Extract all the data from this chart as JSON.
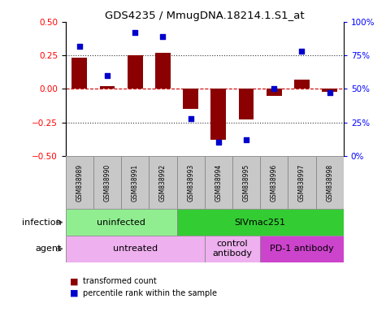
{
  "title": "GDS4235 / MmugDNA.18214.1.S1_at",
  "samples": [
    "GSM838989",
    "GSM838990",
    "GSM838991",
    "GSM838992",
    "GSM838993",
    "GSM838994",
    "GSM838995",
    "GSM838996",
    "GSM838997",
    "GSM838998"
  ],
  "transformed_count": [
    0.23,
    0.02,
    0.25,
    0.27,
    -0.15,
    -0.38,
    -0.23,
    -0.05,
    0.07,
    -0.02
  ],
  "percentile_rank": [
    82,
    60,
    92,
    89,
    28,
    10,
    12,
    50,
    78,
    47
  ],
  "ylim_left": [
    -0.5,
    0.5
  ],
  "ylim_right": [
    0,
    100
  ],
  "yticks_left": [
    -0.5,
    -0.25,
    0,
    0.25,
    0.5
  ],
  "yticks_right": [
    0,
    25,
    50,
    75,
    100
  ],
  "bar_color": "#8B0000",
  "scatter_color": "#0000CD",
  "hline_color": "#CC0000",
  "dotted_color": "#333333",
  "infection_groups": [
    {
      "label": "uninfected",
      "start": 0,
      "end": 4,
      "color": "#90EE90"
    },
    {
      "label": "SIVmac251",
      "start": 4,
      "end": 10,
      "color": "#33CC33"
    }
  ],
  "agent_groups": [
    {
      "label": "untreated",
      "start": 0,
      "end": 5,
      "color": "#EEB0EE"
    },
    {
      "label": "control\nantibody",
      "start": 5,
      "end": 7,
      "color": "#EEB0EE"
    },
    {
      "label": "PD-1 antibody",
      "start": 7,
      "end": 10,
      "color": "#CC44CC"
    }
  ],
  "legend_items": [
    {
      "label": "transformed count",
      "color": "#8B0000"
    },
    {
      "label": "percentile rank within the sample",
      "color": "#0000CD"
    }
  ],
  "xlabel_infection": "infection",
  "xlabel_agent": "agent",
  "sample_bg": "#C8C8C8"
}
